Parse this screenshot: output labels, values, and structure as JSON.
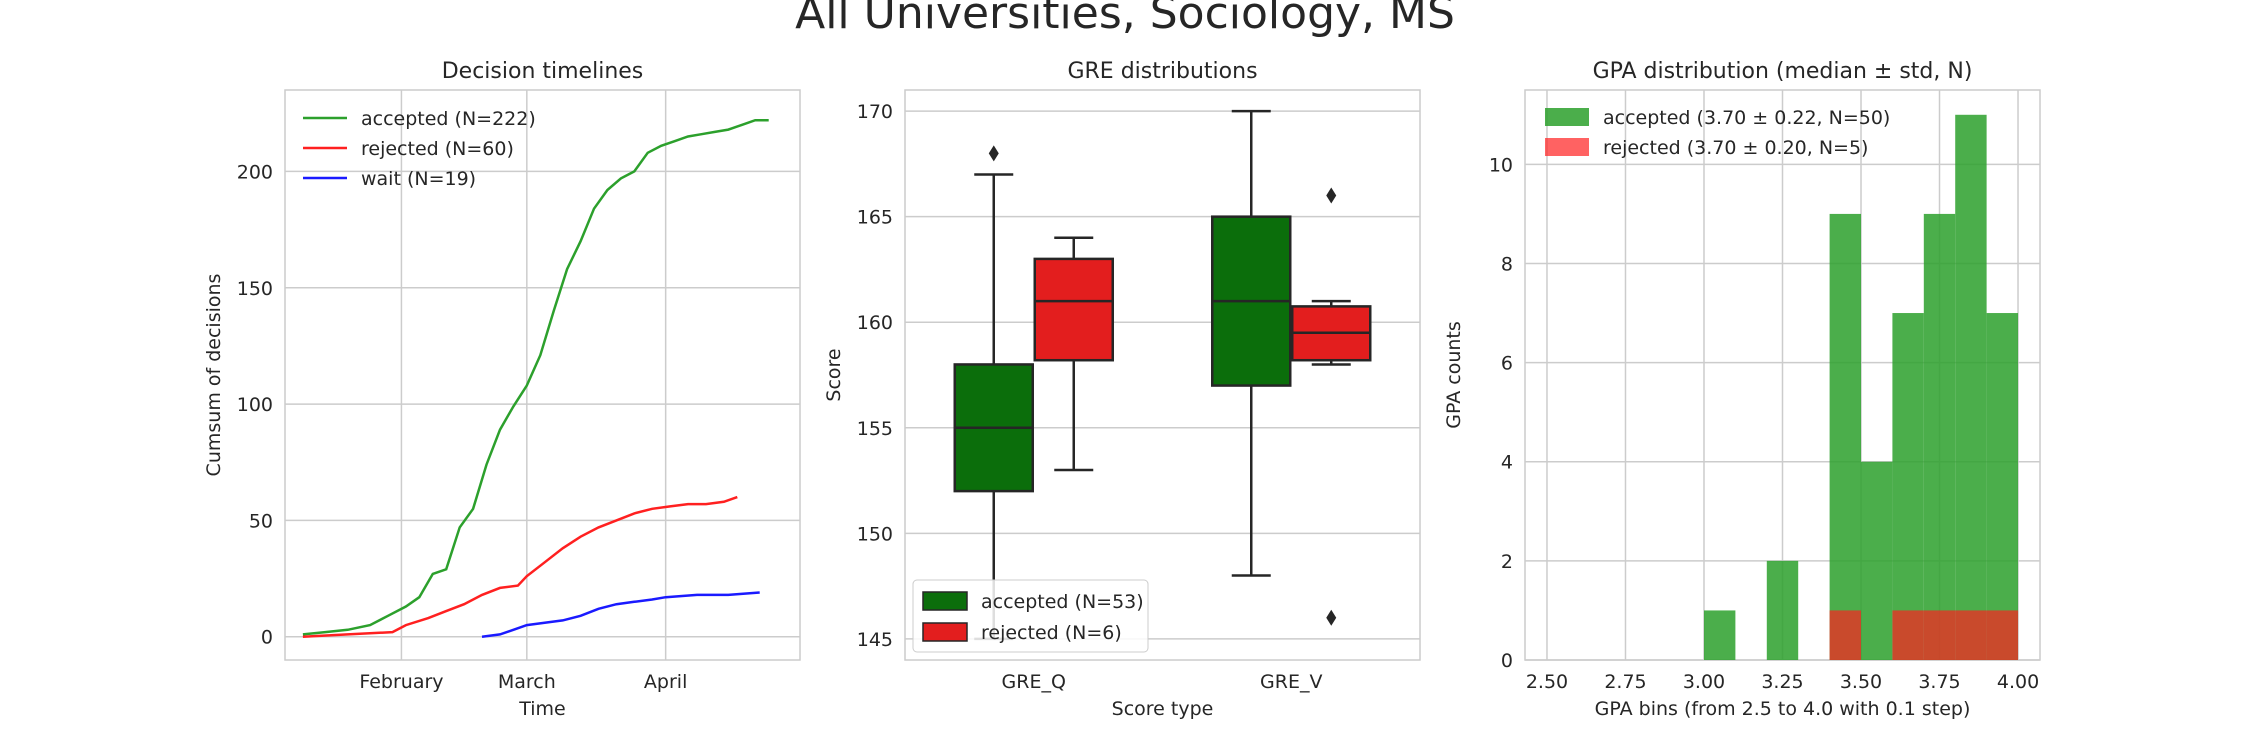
{
  "figure": {
    "title": "All Universities, Sociology, MS"
  },
  "colors": {
    "accepted": "#2ca02c",
    "rejected": "#ff2020",
    "wait": "#1a1aff",
    "box_accepted": "#0b6e0b",
    "box_rejected": "#e31e1e"
  },
  "chart_data": [
    {
      "type": "line",
      "title": "Decision timelines",
      "xlabel": "Time",
      "ylabel": "Cumsum of decisions",
      "x_ticks": [
        "February",
        "March",
        "April"
      ],
      "x_tick_dates": [
        "2019-02-01",
        "2019-03-01",
        "2019-04-01"
      ],
      "xlim": [
        "2019-01-06",
        "2019-05-01"
      ],
      "ylim": [
        -10,
        235
      ],
      "y_ticks": [
        0,
        50,
        100,
        150,
        200
      ],
      "grid": true,
      "legend": "top-left",
      "series": [
        {
          "name": "accepted (N=222)",
          "color_key": "accepted",
          "x": [
            "2019-01-10",
            "2019-01-15",
            "2019-01-20",
            "2019-01-25",
            "2019-01-29",
            "2019-02-02",
            "2019-02-05",
            "2019-02-08",
            "2019-02-11",
            "2019-02-14",
            "2019-02-17",
            "2019-02-20",
            "2019-02-23",
            "2019-02-26",
            "2019-03-01",
            "2019-03-04",
            "2019-03-07",
            "2019-03-10",
            "2019-03-13",
            "2019-03-16",
            "2019-03-19",
            "2019-03-22",
            "2019-03-25",
            "2019-03-28",
            "2019-03-31",
            "2019-04-03",
            "2019-04-06",
            "2019-04-09",
            "2019-04-12",
            "2019-04-15",
            "2019-04-18",
            "2019-04-21",
            "2019-04-24"
          ],
          "y": [
            1,
            2,
            3,
            5,
            9,
            13,
            17,
            27,
            29,
            47,
            55,
            74,
            89,
            99,
            108,
            121,
            140,
            158,
            170,
            184,
            192,
            197,
            200,
            208,
            211,
            213,
            215,
            216,
            217,
            218,
            220,
            222,
            222
          ]
        },
        {
          "name": "rejected (N=60)",
          "color_key": "rejected",
          "x": [
            "2019-01-10",
            "2019-01-20",
            "2019-01-30",
            "2019-02-02",
            "2019-02-07",
            "2019-02-11",
            "2019-02-15",
            "2019-02-19",
            "2019-02-23",
            "2019-02-27",
            "2019-03-01",
            "2019-03-05",
            "2019-03-09",
            "2019-03-13",
            "2019-03-17",
            "2019-03-21",
            "2019-03-25",
            "2019-03-29",
            "2019-04-02",
            "2019-04-06",
            "2019-04-10",
            "2019-04-14",
            "2019-04-17"
          ],
          "y": [
            0,
            1,
            2,
            5,
            8,
            11,
            14,
            18,
            21,
            22,
            26,
            32,
            38,
            43,
            47,
            50,
            53,
            55,
            56,
            57,
            57,
            58,
            60
          ]
        },
        {
          "name": "wait (N=19)",
          "color_key": "wait",
          "x": [
            "2019-02-19",
            "2019-02-23",
            "2019-02-26",
            "2019-03-01",
            "2019-03-05",
            "2019-03-09",
            "2019-03-13",
            "2019-03-17",
            "2019-03-21",
            "2019-03-25",
            "2019-03-29",
            "2019-04-01",
            "2019-04-08",
            "2019-04-15",
            "2019-04-22"
          ],
          "y": [
            0,
            1,
            3,
            5,
            6,
            7,
            9,
            12,
            14,
            15,
            16,
            17,
            18,
            18,
            19
          ]
        }
      ]
    },
    {
      "type": "box",
      "title": "GRE distributions",
      "xlabel": "Score type",
      "ylabel": "Score",
      "categories": [
        "GRE_Q",
        "GRE_V"
      ],
      "ylim": [
        144,
        171
      ],
      "y_ticks": [
        145,
        150,
        155,
        160,
        165,
        170
      ],
      "grid": true,
      "legend": "bottom-left",
      "series": [
        {
          "name": "accepted (N=53)",
          "color_key": "box_accepted",
          "boxes": [
            {
              "q1": 152,
              "median": 155,
              "q3": 158,
              "whisker_low": 145,
              "whisker_high": 167,
              "outliers": [
                168
              ]
            },
            {
              "q1": 157,
              "median": 161,
              "q3": 165,
              "whisker_low": 148,
              "whisker_high": 170,
              "outliers": []
            }
          ]
        },
        {
          "name": "rejected (N=6)",
          "color_key": "box_rejected",
          "boxes": [
            {
              "q1": 158.2,
              "median": 161,
              "q3": 163,
              "whisker_low": 153,
              "whisker_high": 164,
              "outliers": []
            },
            {
              "q1": 158.2,
              "median": 159.5,
              "q3": 160.75,
              "whisker_low": 158,
              "whisker_high": 161,
              "outliers": [
                166,
                146
              ]
            }
          ]
        }
      ]
    },
    {
      "type": "bar",
      "title": "GPA distribution (median ± std, N)",
      "xlabel": "GPA bins (from 2.5 to 4.0 with 0.1 step)",
      "ylabel": "GPA counts",
      "xlim": [
        2.43,
        4.07
      ],
      "ylim": [
        0,
        11.5
      ],
      "x_ticks": [
        "2.50",
        "2.75",
        "3.00",
        "3.25",
        "3.50",
        "3.75",
        "4.00"
      ],
      "x_tick_values": [
        2.5,
        2.75,
        3.0,
        3.25,
        3.5,
        3.75,
        4.0
      ],
      "y_ticks": [
        0,
        2,
        4,
        6,
        8,
        10
      ],
      "grid": true,
      "legend": "top-left",
      "bin_edges": [
        2.5,
        2.6,
        2.7,
        2.8,
        2.9,
        3.0,
        3.1,
        3.2,
        3.3,
        3.4,
        3.5,
        3.6,
        3.7,
        3.8,
        3.9,
        4.0
      ],
      "series": [
        {
          "name": "accepted (3.70 ± 0.22, N=50)",
          "color_key": "accepted",
          "values": [
            0,
            0,
            0,
            0,
            0,
            1,
            0,
            2,
            0,
            9,
            4,
            7,
            9,
            11,
            7
          ]
        },
        {
          "name": "rejected (3.70 ± 0.20, N=5)",
          "color_key": "rejected",
          "values": [
            0,
            0,
            0,
            0,
            0,
            0,
            0,
            0,
            0,
            1,
            0,
            1,
            1,
            1,
            1
          ]
        }
      ]
    }
  ]
}
